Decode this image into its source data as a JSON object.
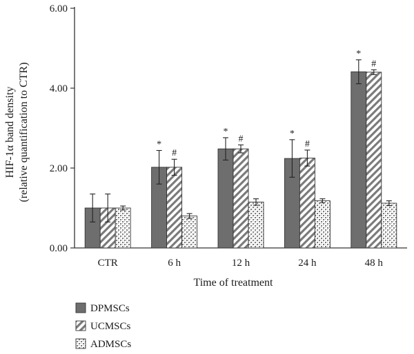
{
  "chart_data": {
    "type": "bar",
    "title": "",
    "xlabel": "Time of treatment",
    "ylabel": "HIF-1α band density",
    "ylabel_sub": "(relative quantification to CTR)",
    "ylim": [
      0,
      6
    ],
    "yticks": [
      "0.00",
      "2.00",
      "4.00",
      "6.00"
    ],
    "ytick_values": [
      0,
      2,
      4,
      6
    ],
    "grid": false,
    "legend_position": "bottom-left",
    "categories": [
      "CTR",
      "6 h",
      "12 h",
      "24 h",
      "48 h"
    ],
    "series": [
      {
        "name": "DPMSCs",
        "pattern": "solid-gray",
        "color": "#6e6e6e",
        "values": [
          1.0,
          2.02,
          2.48,
          2.24,
          4.41
        ],
        "errors": [
          0.35,
          0.42,
          0.28,
          0.47,
          0.3
        ],
        "marks": [
          "",
          "*",
          "*",
          "*",
          "*"
        ]
      },
      {
        "name": "UCMSCs",
        "pattern": "diagonal-hatch",
        "color": "#6e6e6e",
        "values": [
          1.0,
          2.02,
          2.48,
          2.25,
          4.4
        ],
        "errors": [
          0.35,
          0.2,
          0.1,
          0.2,
          0.06
        ],
        "marks": [
          "",
          "#",
          "#",
          "#",
          "#"
        ]
      },
      {
        "name": "ADMSCs",
        "pattern": "dotted",
        "color": "#6e6e6e",
        "values": [
          1.0,
          0.8,
          1.15,
          1.18,
          1.12
        ],
        "errors": [
          0.05,
          0.06,
          0.08,
          0.05,
          0.06
        ],
        "marks": [
          "",
          "",
          "",
          "",
          ""
        ]
      }
    ]
  }
}
